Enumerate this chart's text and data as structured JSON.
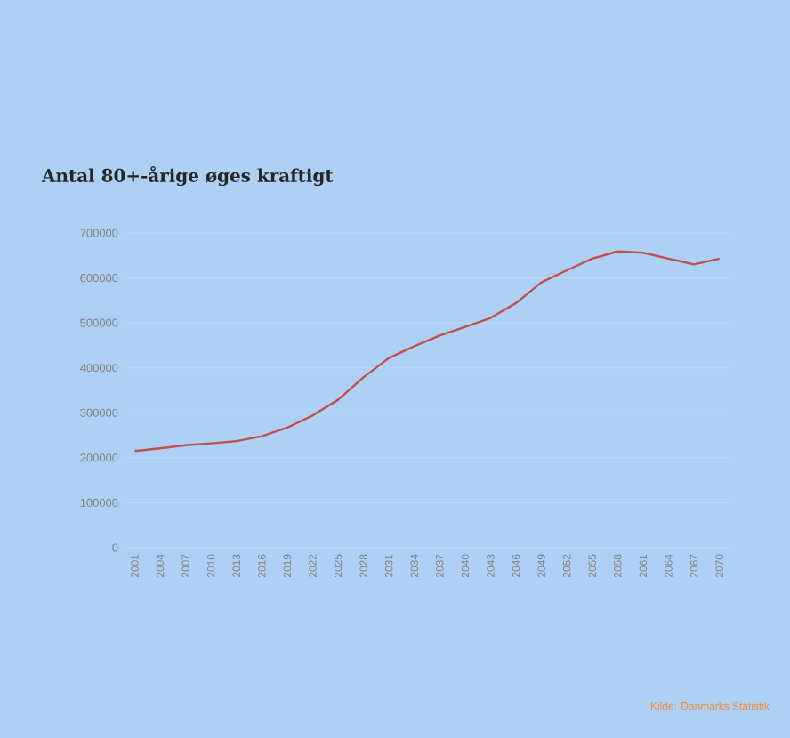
{
  "chart_data": {
    "type": "line",
    "title": "Antal 80+-årige øges kraftigt",
    "categories": [
      "2001",
      "2004",
      "2007",
      "2010",
      "2013",
      "2016",
      "2019",
      "2022",
      "2025",
      "2028",
      "2031",
      "2034",
      "2037",
      "2040",
      "2043",
      "2046",
      "2049",
      "2052",
      "2055",
      "2058",
      "2061",
      "2064",
      "2067",
      "2070"
    ],
    "series": [
      {
        "color": "#c0504d",
        "values": [
          215000,
          221000,
          228000,
          232000,
          237000,
          248000,
          267000,
          294000,
          329000,
          379000,
          422000,
          448000,
          472000,
          491000,
          511000,
          544000,
          590000,
          617000,
          643000,
          659000,
          656000,
          643000,
          630000,
          643000
        ]
      }
    ],
    "ylim": [
      0,
      700000
    ],
    "yticks": [
      0,
      100000,
      200000,
      300000,
      400000,
      500000,
      600000,
      700000
    ],
    "grid": "y",
    "marker": "none",
    "line_style": "solid",
    "annotations": [
      "Kilde: Danmarks Statistik"
    ]
  }
}
